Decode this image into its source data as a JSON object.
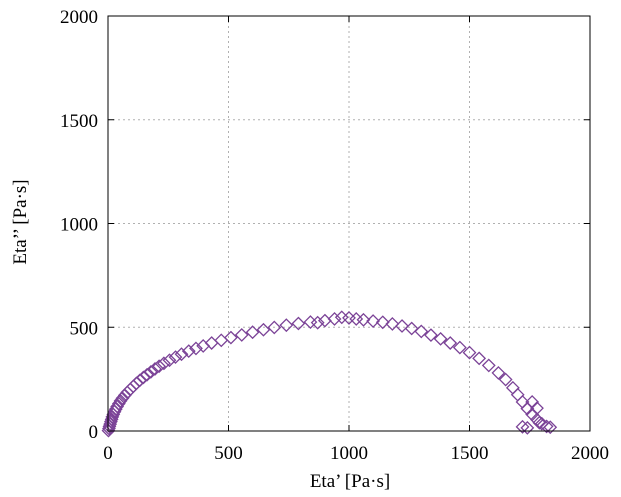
{
  "chart_data": {
    "type": "scatter",
    "xlabel": "Eta’ [Pa·s]",
    "ylabel": "Eta’’ [Pa·s]",
    "xlim": [
      0,
      2000
    ],
    "ylim": [
      0,
      2000
    ],
    "xticks": [
      0,
      500,
      1000,
      1500,
      2000
    ],
    "yticks": [
      0,
      500,
      1000,
      1500,
      2000
    ],
    "grid": true,
    "marker": "diamond-open",
    "colors": {
      "marker": "#7b4397",
      "grid": "#b0b0b0",
      "axis": "#000000"
    },
    "series": [
      {
        "points": [
          [
            2,
            2
          ],
          [
            4,
            12
          ],
          [
            6,
            22
          ],
          [
            9,
            33
          ],
          [
            12,
            45
          ],
          [
            15,
            56
          ],
          [
            18,
            68
          ],
          [
            22,
            80
          ],
          [
            27,
            93
          ],
          [
            32,
            105
          ],
          [
            38,
            118
          ],
          [
            45,
            132
          ],
          [
            52,
            145
          ],
          [
            60,
            158
          ],
          [
            70,
            172
          ],
          [
            80,
            186
          ],
          [
            92,
            200
          ],
          [
            105,
            215
          ],
          [
            118,
            230
          ],
          [
            132,
            244
          ],
          [
            147,
            258
          ],
          [
            162,
            271
          ],
          [
            178,
            285
          ],
          [
            195,
            299
          ],
          [
            212,
            312
          ],
          [
            232,
            326
          ],
          [
            255,
            341
          ],
          [
            280,
            356
          ],
          [
            305,
            370
          ],
          [
            335,
            385
          ],
          [
            365,
            398
          ],
          [
            395,
            410
          ],
          [
            430,
            424
          ],
          [
            470,
            437
          ],
          [
            510,
            450
          ],
          [
            555,
            463
          ],
          [
            600,
            476
          ],
          [
            645,
            488
          ],
          [
            690,
            499
          ],
          [
            740,
            510
          ],
          [
            790,
            518
          ],
          [
            840,
            525
          ],
          [
            870,
            522
          ],
          [
            900,
            532
          ],
          [
            940,
            540
          ],
          [
            970,
            548
          ],
          [
            1000,
            545
          ],
          [
            1030,
            540
          ],
          [
            1060,
            536
          ],
          [
            1100,
            530
          ],
          [
            1140,
            524
          ],
          [
            1180,
            516
          ],
          [
            1220,
            506
          ],
          [
            1260,
            494
          ],
          [
            1300,
            480
          ],
          [
            1340,
            462
          ],
          [
            1380,
            444
          ],
          [
            1420,
            424
          ],
          [
            1460,
            402
          ],
          [
            1500,
            378
          ],
          [
            1540,
            350
          ],
          [
            1580,
            316
          ],
          [
            1620,
            280
          ],
          [
            1650,
            248
          ],
          [
            1680,
            208
          ],
          [
            1700,
            175
          ],
          [
            1720,
            140
          ],
          [
            1740,
            108
          ],
          [
            1760,
            80
          ],
          [
            1780,
            55
          ],
          [
            1800,
            35
          ],
          [
            1820,
            22
          ],
          [
            1835,
            18
          ],
          [
            1760,
            140
          ],
          [
            1780,
            110
          ],
          [
            1720,
            20
          ],
          [
            1740,
            15
          ],
          [
            1790,
            40
          ]
        ]
      }
    ]
  }
}
